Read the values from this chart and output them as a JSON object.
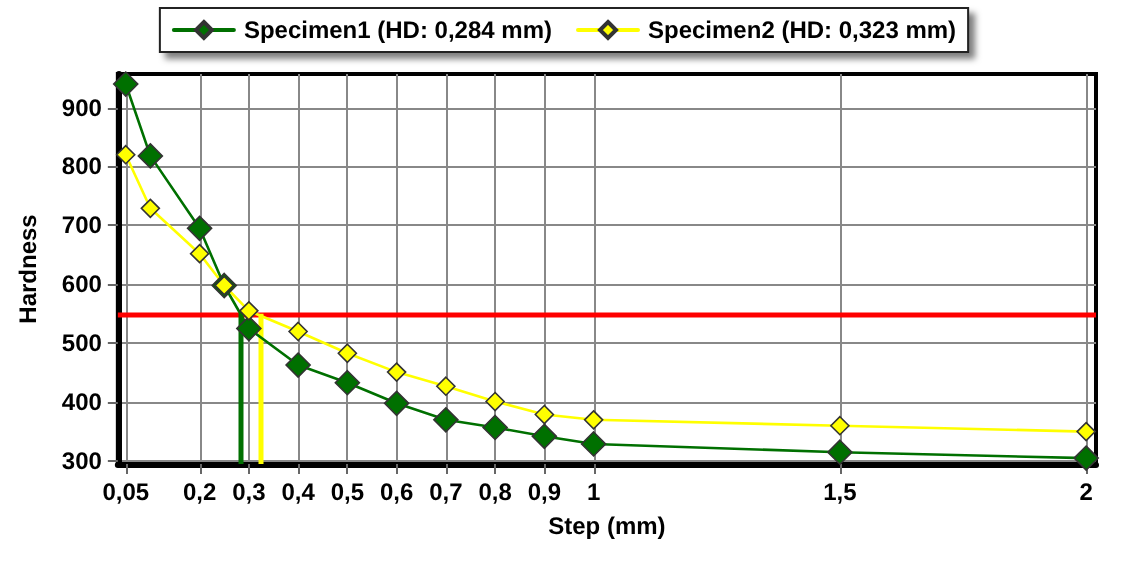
{
  "chart_data": {
    "type": "line",
    "xlabel": "Step (mm)",
    "ylabel": "Hardness",
    "x": [
      0.05,
      0.1,
      0.2,
      0.25,
      0.3,
      0.4,
      0.5,
      0.6,
      0.7,
      0.8,
      0.9,
      1,
      1.5,
      2
    ],
    "series": [
      {
        "name": "Specimen1 (HD: 0,284 mm)",
        "color": "#007000",
        "values": [
          940,
          818,
          695,
          598,
          525,
          463,
          433,
          398,
          370,
          357,
          342,
          329,
          315,
          305
        ]
      },
      {
        "name": "Specimen2 (HD: 0,323 mm)",
        "color": "#ffff00",
        "values": [
          820,
          729,
          652,
          598,
          555,
          520,
          483,
          451,
          427,
          401,
          379,
          370,
          360,
          350
        ]
      }
    ],
    "xlim": [
      0.034,
      2.02
    ],
    "ylim": [
      295,
      957
    ],
    "xticks": [
      {
        "value": 0.05,
        "label": "0,05"
      },
      {
        "value": 0.2,
        "label": "0,2"
      },
      {
        "value": 0.3,
        "label": "0,3"
      },
      {
        "value": 0.4,
        "label": "0,4"
      },
      {
        "value": 0.5,
        "label": "0,5"
      },
      {
        "value": 0.6,
        "label": "0,6"
      },
      {
        "value": 0.7,
        "label": "0,7"
      },
      {
        "value": 0.8,
        "label": "0,8"
      },
      {
        "value": 0.9,
        "label": "0,9"
      },
      1,
      {
        "value": 1.5,
        "label": "1,5"
      },
      2
    ],
    "yticks": [
      300,
      400,
      500,
      600,
      700,
      800,
      900
    ],
    "ref_lines": [
      {
        "axis": "y",
        "value": 550,
        "color": "#ff0000"
      },
      {
        "axis": "x",
        "value": 0.284,
        "color": "#007000"
      },
      {
        "axis": "x",
        "value": 0.323,
        "color": "#ffff00"
      }
    ],
    "grid": true,
    "legend": "top",
    "marker": "diamond",
    "line_style": "solid"
  }
}
